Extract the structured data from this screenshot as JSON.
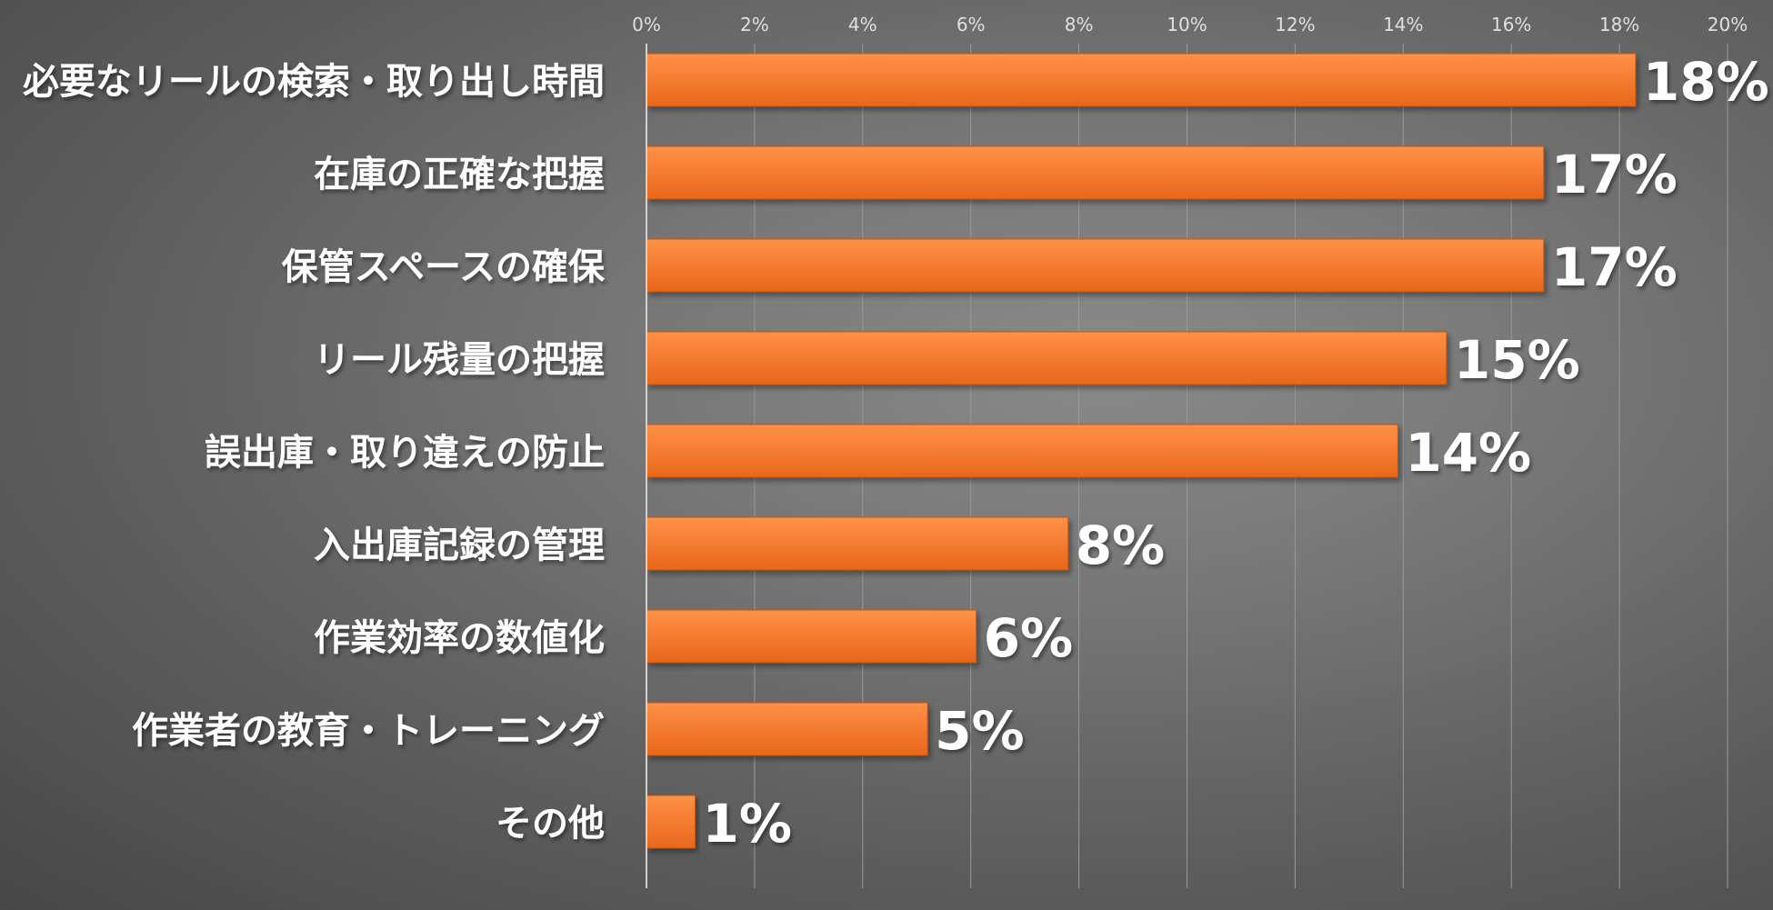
{
  "chart_data": {
    "type": "bar",
    "orientation": "horizontal",
    "title": "",
    "xlabel": "",
    "ylabel": "",
    "xlim": [
      0,
      20
    ],
    "x_ticks": [
      0,
      2,
      4,
      6,
      8,
      10,
      12,
      14,
      16,
      18,
      20
    ],
    "x_tick_labels": [
      "0%",
      "2%",
      "4%",
      "6%",
      "8%",
      "10%",
      "12%",
      "14%",
      "16%",
      "18%",
      "20%"
    ],
    "x_tick_position": "top",
    "grid": true,
    "legend": "none",
    "categories": [
      "必要なリールの検索・取り出し時間",
      "在庫の正確な把握",
      "保管スペースの確保",
      "リール残量の把握",
      "誤出庫・取り違えの防止",
      "入出庫記録の管理",
      "作業効率の数値化",
      "作業者の教育・トレーニング",
      "その他"
    ],
    "values": [
      18.3,
      16.6,
      16.6,
      14.8,
      13.9,
      7.8,
      6.1,
      5.2,
      0.9
    ],
    "data_labels": [
      "18%",
      "17%",
      "17%",
      "15%",
      "14%",
      "8%",
      "6%",
      "5%",
      "1%"
    ],
    "colors": {
      "bar_top": "#ff9147",
      "bar_bottom": "#e8661a",
      "bar_edge": "#c55410",
      "label_text": "#ffffff",
      "tick_text": "#e0e0e0",
      "gridline": "#9a9a9a",
      "axis_line": "#d0d0d0"
    }
  }
}
